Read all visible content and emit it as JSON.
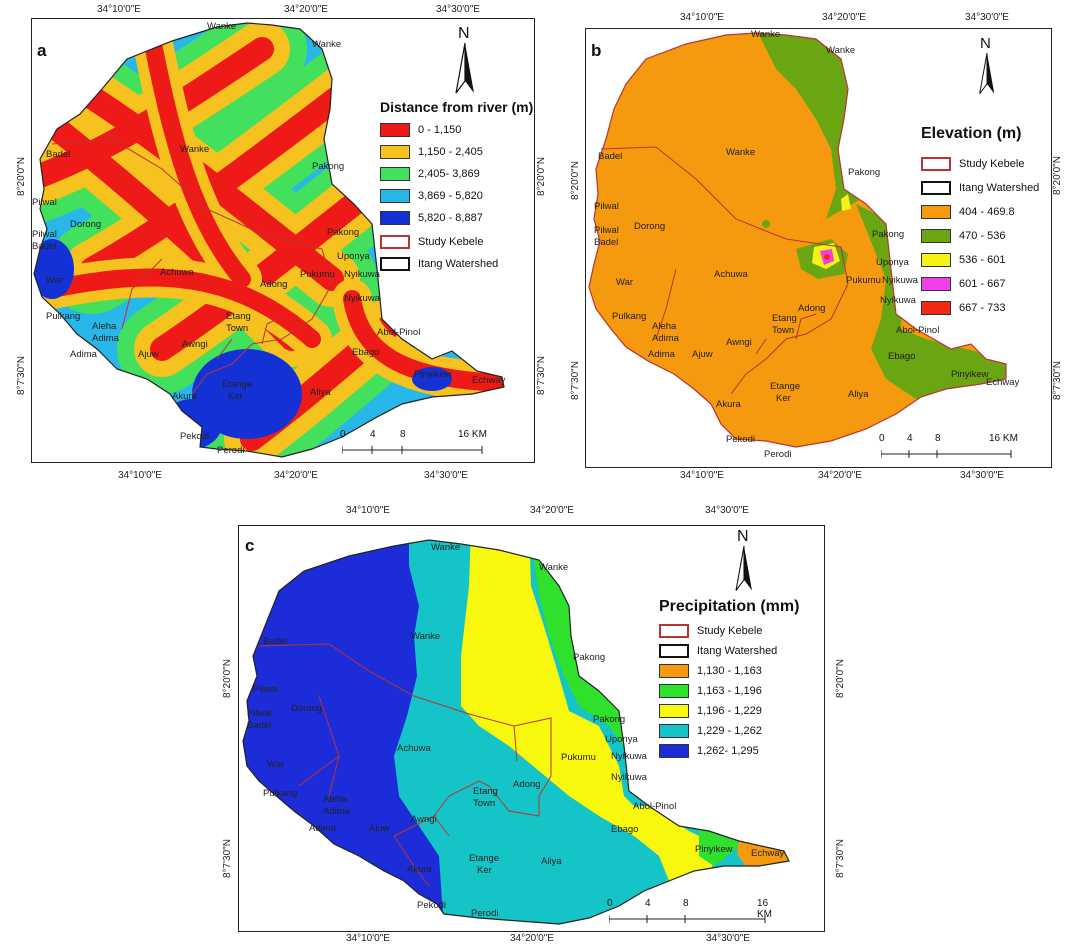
{
  "panels": {
    "a": {
      "label": "a",
      "legend_title": "Distance from river (m)",
      "legend": [
        {
          "label": "0 - 1,150",
          "color": "#ee1a17"
        },
        {
          "label": "1,150 - 2,405",
          "color": "#f6c21f"
        },
        {
          "label": "2,405- 3,869",
          "color": "#43e05e"
        },
        {
          "label": "3,869 - 5,820",
          "color": "#27b7e8"
        },
        {
          "label": "5,820 - 8,887",
          "color": "#1431d6"
        }
      ],
      "boundary_items": [
        {
          "label": "Study Kebele",
          "type": "kebele"
        },
        {
          "label": "Itang Watershed",
          "type": "watershed"
        }
      ],
      "top_coords": [
        "34°10'0\"E",
        "34°20'0\"E",
        "34°30'0\"E"
      ],
      "bottom_coords": [
        "34°10'0\"E",
        "34°20'0\"E",
        "34°30'0\"E"
      ],
      "left_coords": [
        "8°20'0\"N",
        "8°7'30\"N"
      ],
      "right_coords": [
        "8°20'0\"N",
        "8°7'30\"N"
      ],
      "scale": {
        "ticks": [
          "0",
          "4",
          "8",
          "16 KM"
        ]
      }
    },
    "b": {
      "label": "b",
      "legend_title": "Elevation (m)",
      "boundary_items": [
        {
          "label": "Study Kebele",
          "type": "kebele"
        },
        {
          "label": "Itang Watershed",
          "type": "watershed"
        }
      ],
      "legend": [
        {
          "label": "404 - 469.8",
          "color": "#f59a0e"
        },
        {
          "label": "470 - 536",
          "color": "#6aa512"
        },
        {
          "label": "536 - 601",
          "color": "#f6f214"
        },
        {
          "label": "601 - 667",
          "color": "#f23ee8"
        },
        {
          "label": "667 - 733",
          "color": "#f22a14"
        }
      ],
      "top_coords": [
        "34°10'0\"E",
        "34°20'0\"E",
        "34°30'0\"E"
      ],
      "bottom_coords": [
        "34°10'0\"E",
        "34°20'0\"E",
        "34°30'0\"E"
      ],
      "left_coords": [
        "8°20'0\"N",
        "8°7'30\"N"
      ],
      "right_coords": [
        "8°20'0\"N",
        "8°7'30\"N"
      ],
      "scale": {
        "ticks": [
          "0",
          "4",
          "8",
          "16 KM"
        ]
      }
    },
    "c": {
      "label": "c",
      "legend_title": "Precipitation (mm)",
      "boundary_items": [
        {
          "label": "Study Kebele",
          "type": "kebele"
        },
        {
          "label": "Itang Watershed",
          "type": "watershed"
        }
      ],
      "legend": [
        {
          "label": "1,130 - 1,163",
          "color": "#f59a0e"
        },
        {
          "label": "1,163 - 1,196",
          "color": "#2fe02c"
        },
        {
          "label": "1,196 - 1,229",
          "color": "#f8f80e"
        },
        {
          "label": "1,229 - 1,262",
          "color": "#14c4c6"
        },
        {
          "label": "1,262- 1,295",
          "color": "#1b2cd8"
        }
      ],
      "top_coords": [
        "34°10'0\"E",
        "34°20'0\"E",
        "34°30'0\"E"
      ],
      "bottom_coords": [
        "34°10'0\"E",
        "34°20'0\"E",
        "34°30'0\"E"
      ],
      "left_coords": [
        "8°20'0\"N",
        "8°7'30\"N"
      ],
      "right_coords": [
        "8°20'0\"N",
        "8°7'30\"N"
      ],
      "scale": {
        "ticks": [
          "0",
          "4",
          "8",
          "16 KM"
        ]
      }
    }
  },
  "north_label": "N",
  "places": {
    "wanke_top": "Wanke",
    "wanke": "Wanke",
    "badel": "Badel",
    "pilwal": "Pilwal",
    "pilwal_badel": "Pilwal\nBadel",
    "pakong": "Pakong",
    "dorong": "Dorong",
    "uponya": "Uponya",
    "pukumu": "Pukumu",
    "nyikuwa": "Nyikuwa",
    "achuwa": "Achuwa",
    "war": "War",
    "adong": "Adong",
    "pulkang": "Pulkang",
    "aleha_adima": "Aleha\nAdima",
    "etang_town": "Etang\nTown",
    "abol_pinol": "Abol-Pinol",
    "adima": "Adima",
    "ajuw": "Ajuw",
    "awngi": "Awngi",
    "ebago": "Ebago",
    "pinyikew": "Pinyikew",
    "echway": "Echway",
    "etange_ker": "Etange\nKer",
    "aliya": "Aliya",
    "akura": "Akura",
    "pekodi": "Pekodi",
    "perodi": "Perodi"
  }
}
